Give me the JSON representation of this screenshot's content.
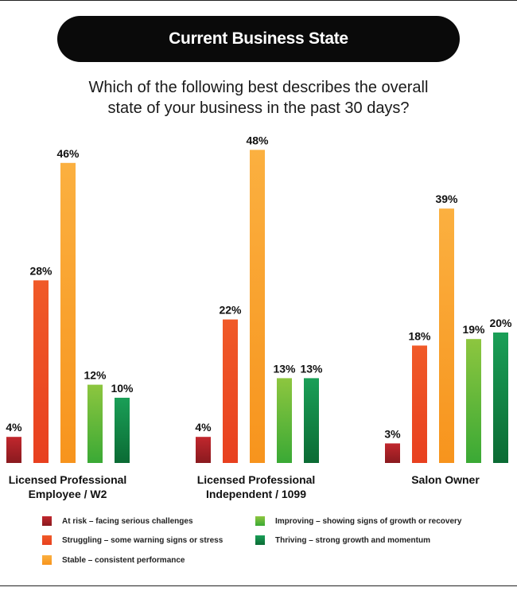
{
  "header": {
    "title": "Current Business State",
    "question_line1": "Which of the following best describes the overall",
    "question_line2": "state of your business in the past 30 days?"
  },
  "colors": {
    "at_risk_top": "#c1272d",
    "at_risk_bottom": "#8a1a1f",
    "struggling_top": "#f05a28",
    "struggling_bottom": "#e8401f",
    "stable_top": "#fbb040",
    "stable_bottom": "#f7941d",
    "improving_top": "#8dc63f",
    "improving_bottom": "#3aa935",
    "thriving_top": "#1a9f57",
    "thriving_bottom": "#0b6b34"
  },
  "chart_data": {
    "type": "bar",
    "title": "Current Business State",
    "categories": [
      "Licensed Professional\nEmployee / W2",
      "Licensed Professional\nIndependent / 1099",
      "Salon Owner"
    ],
    "series": [
      {
        "name": "At risk – facing serious challenges",
        "values": [
          4,
          4,
          3
        ]
      },
      {
        "name": "Struggling – some warning signs or stress",
        "values": [
          28,
          22,
          18
        ]
      },
      {
        "name": "Stable – consistent performance",
        "values": [
          46,
          48,
          39
        ]
      },
      {
        "name": "Improving – showing signs of growth or recovery",
        "values": [
          12,
          13,
          19
        ]
      },
      {
        "name": "Thriving – strong growth and momentum",
        "values": [
          10,
          13,
          20
        ]
      }
    ],
    "value_suffix": "%",
    "xlabel": "",
    "ylabel": "",
    "ylim": [
      0,
      50
    ],
    "grid": false,
    "legend_position": "bottom"
  }
}
